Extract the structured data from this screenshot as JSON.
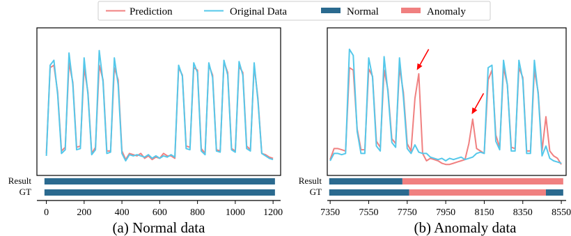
{
  "colors": {
    "prediction": "#f08080",
    "original": "#55c8ea",
    "normal": "#2b6a8f",
    "anomaly": "#f08080",
    "arrow": "#ff0000"
  },
  "legend": [
    {
      "label": "Prediction",
      "kind": "line",
      "color": "#f08080"
    },
    {
      "label": "Original Data",
      "kind": "line",
      "color": "#55c8ea"
    },
    {
      "label": "Normal",
      "kind": "bar",
      "color": "#2b6a8f"
    },
    {
      "label": "Anomaly",
      "kind": "bar",
      "color": "#f08080"
    }
  ],
  "chart_data": [
    {
      "type": "line",
      "caption": "(a) Normal data",
      "xlim": [
        -50,
        1240
      ],
      "ylim": [
        0,
        1
      ],
      "xticks": [
        0,
        200,
        400,
        600,
        800,
        1000,
        1200
      ],
      "bar_labels": [
        "Result",
        "GT"
      ],
      "series": [
        {
          "name": "Prediction",
          "x": [
            0,
            20,
            40,
            60,
            80,
            100,
            120,
            140,
            160,
            180,
            200,
            220,
            240,
            260,
            280,
            300,
            320,
            340,
            360,
            380,
            400,
            420,
            440,
            460,
            480,
            500,
            520,
            540,
            560,
            580,
            600,
            620,
            640,
            660,
            680,
            700,
            720,
            740,
            760,
            780,
            800,
            820,
            840,
            860,
            880,
            900,
            920,
            940,
            960,
            980,
            1000,
            1020,
            1040,
            1060,
            1080,
            1100,
            1120,
            1140,
            1160,
            1180,
            1200
          ],
          "y": [
            0.1,
            0.8,
            0.82,
            0.6,
            0.12,
            0.15,
            0.84,
            0.68,
            0.15,
            0.16,
            0.8,
            0.6,
            0.1,
            0.15,
            0.82,
            0.7,
            0.12,
            0.12,
            0.8,
            0.7,
            0.12,
            0.05,
            0.1,
            0.09,
            0.08,
            0.1,
            0.06,
            0.08,
            0.05,
            0.07,
            0.06,
            0.1,
            0.08,
            0.08,
            0.06,
            0.8,
            0.74,
            0.16,
            0.15,
            0.8,
            0.78,
            0.14,
            0.1,
            0.82,
            0.74,
            0.13,
            0.12,
            0.85,
            0.76,
            0.14,
            0.12,
            0.81,
            0.76,
            0.16,
            0.13,
            0.82,
            0.55,
            0.1,
            0.09,
            0.07,
            0.06
          ]
        },
        {
          "name": "Original Data",
          "x": [
            0,
            20,
            40,
            60,
            80,
            100,
            120,
            140,
            160,
            180,
            200,
            220,
            240,
            260,
            280,
            300,
            320,
            340,
            360,
            380,
            400,
            420,
            440,
            460,
            480,
            500,
            520,
            540,
            560,
            580,
            600,
            620,
            640,
            660,
            680,
            700,
            720,
            740,
            760,
            780,
            800,
            820,
            840,
            860,
            880,
            900,
            920,
            940,
            960,
            980,
            1000,
            1020,
            1040,
            1060,
            1080,
            1100,
            1120,
            1140,
            1160,
            1180,
            1200
          ],
          "y": [
            0.08,
            0.82,
            0.86,
            0.58,
            0.1,
            0.13,
            0.92,
            0.66,
            0.13,
            0.14,
            0.88,
            0.58,
            0.09,
            0.13,
            0.94,
            0.68,
            0.1,
            0.11,
            0.88,
            0.66,
            0.1,
            0.04,
            0.09,
            0.08,
            0.09,
            0.08,
            0.07,
            0.09,
            0.06,
            0.08,
            0.06,
            0.08,
            0.07,
            0.09,
            0.07,
            0.82,
            0.73,
            0.14,
            0.13,
            0.84,
            0.76,
            0.12,
            0.09,
            0.84,
            0.72,
            0.12,
            0.11,
            0.86,
            0.74,
            0.13,
            0.11,
            0.85,
            0.74,
            0.14,
            0.12,
            0.84,
            0.53,
            0.1,
            0.08,
            0.06,
            0.05
          ]
        }
      ],
      "result_segments": [
        {
          "start": -10,
          "end": 1210,
          "state": "Normal"
        }
      ],
      "gt_segments": [
        {
          "start": -10,
          "end": 1210,
          "state": "Normal"
        }
      ]
    },
    {
      "type": "line",
      "caption": "(b) Anomaly data",
      "xlim": [
        7335,
        8575
      ],
      "ylim": [
        0,
        1
      ],
      "xticks": [
        7350,
        7550,
        7750,
        7950,
        8150,
        8350,
        8550
      ],
      "bar_labels": [
        "Result",
        "GT"
      ],
      "series": [
        {
          "name": "Prediction",
          "x": [
            7350,
            7370,
            7390,
            7410,
            7430,
            7450,
            7470,
            7490,
            7510,
            7530,
            7550,
            7570,
            7590,
            7610,
            7630,
            7650,
            7670,
            7690,
            7710,
            7730,
            7750,
            7770,
            7790,
            7810,
            7830,
            7850,
            7870,
            7890,
            7910,
            7930,
            7950,
            7970,
            7990,
            8010,
            8030,
            8050,
            8070,
            8090,
            8110,
            8130,
            8150,
            8170,
            8190,
            8210,
            8230,
            8250,
            8270,
            8290,
            8310,
            8330,
            8350,
            8370,
            8390,
            8410,
            8430,
            8450,
            8470,
            8490,
            8510,
            8530,
            8550
          ],
          "y": [
            0.05,
            0.14,
            0.14,
            0.13,
            0.12,
            0.8,
            0.78,
            0.3,
            0.13,
            0.13,
            0.79,
            0.73,
            0.2,
            0.15,
            0.78,
            0.62,
            0.22,
            0.18,
            0.8,
            0.6,
            0.18,
            0.12,
            0.55,
            0.75,
            0.1,
            0.04,
            0.06,
            0.05,
            0.04,
            0.02,
            0.01,
            0.01,
            0.02,
            0.03,
            0.04,
            0.05,
            0.18,
            0.38,
            0.14,
            0.12,
            0.1,
            0.7,
            0.78,
            0.25,
            0.15,
            0.8,
            0.66,
            0.15,
            0.14,
            0.8,
            0.72,
            0.12,
            0.12,
            0.78,
            0.6,
            0.12,
            0.4,
            0.12,
            0.08,
            0.06,
            0.01
          ]
        },
        {
          "name": "Original Data",
          "x": [
            7350,
            7370,
            7390,
            7410,
            7430,
            7450,
            7470,
            7490,
            7510,
            7530,
            7550,
            7570,
            7590,
            7610,
            7630,
            7650,
            7670,
            7690,
            7710,
            7730,
            7750,
            7770,
            7790,
            7810,
            7830,
            7850,
            7870,
            7890,
            7910,
            7930,
            7950,
            7970,
            7990,
            8010,
            8030,
            8050,
            8070,
            8090,
            8110,
            8130,
            8150,
            8170,
            8190,
            8210,
            8230,
            8250,
            8270,
            8290,
            8310,
            8330,
            8350,
            8370,
            8390,
            8410,
            8430,
            8450,
            8470,
            8490,
            8510,
            8530,
            8550
          ],
          "y": [
            0.04,
            0.1,
            0.1,
            0.09,
            0.1,
            0.95,
            0.9,
            0.28,
            0.1,
            0.1,
            0.88,
            0.72,
            0.16,
            0.12,
            0.89,
            0.6,
            0.19,
            0.15,
            0.88,
            0.56,
            0.14,
            0.1,
            0.17,
            0.11,
            0.1,
            0.1,
            0.07,
            0.06,
            0.05,
            0.06,
            0.04,
            0.06,
            0.05,
            0.06,
            0.07,
            0.05,
            0.06,
            0.07,
            0.1,
            0.11,
            0.1,
            0.8,
            0.82,
            0.2,
            0.13,
            0.86,
            0.66,
            0.12,
            0.12,
            0.86,
            0.7,
            0.1,
            0.1,
            0.86,
            0.58,
            0.08,
            0.16,
            0.06,
            0.04,
            0.03,
            0.02
          ]
        }
      ],
      "result_segments": [
        {
          "start": 7345,
          "end": 7725,
          "state": "Normal"
        },
        {
          "start": 7725,
          "end": 8560,
          "state": "Anomaly"
        }
      ],
      "gt_segments": [
        {
          "start": 7345,
          "end": 7760,
          "state": "Normal"
        },
        {
          "start": 7760,
          "end": 8470,
          "state": "Anomaly"
        },
        {
          "start": 8470,
          "end": 8560,
          "state": "Normal"
        }
      ],
      "annotations": [
        {
          "kind": "arrow",
          "target_x": 7800,
          "target_y": 0.78
        },
        {
          "kind": "arrow",
          "target_x": 8085,
          "target_y": 0.42
        }
      ]
    }
  ]
}
